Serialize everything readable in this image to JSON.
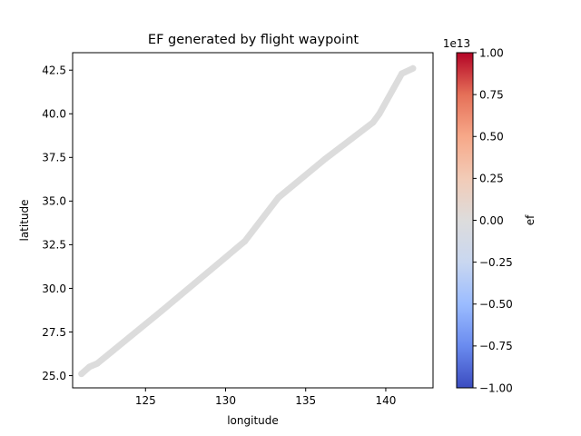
{
  "chart_data": {
    "type": "line",
    "title": "EF generated by flight waypoint",
    "xlabel": "longitude",
    "ylabel": "latitude",
    "xlim": [
      120.45,
      142.95
    ],
    "ylim": [
      24.3,
      43.5
    ],
    "xticks": [
      125,
      130,
      135,
      140
    ],
    "xtick_labels": [
      "125",
      "130",
      "135",
      "140"
    ],
    "yticks": [
      25.0,
      27.5,
      30.0,
      32.5,
      35.0,
      37.5,
      40.0,
      42.5
    ],
    "ytick_labels": [
      "25.0",
      "27.5",
      "30.0",
      "32.5",
      "35.0",
      "37.5",
      "40.0",
      "42.5"
    ],
    "grid": false,
    "series": [
      {
        "line_color": "#dcdcdc",
        "x": [
          121.0,
          121.5,
          122.0,
          126.0,
          131.2,
          133.3,
          136.2,
          139.2,
          139.6,
          141.0,
          141.7
        ],
        "y": [
          25.1,
          25.5,
          25.7,
          28.7,
          32.7,
          35.2,
          37.4,
          39.5,
          40.0,
          42.3,
          42.6
        ]
      }
    ],
    "colorbar": {
      "label": "ef",
      "scale_label": "1e13",
      "colormap": "coolwarm",
      "range": [
        -1.0,
        1.0
      ],
      "ticks": [
        1.0,
        0.75,
        0.5,
        0.25,
        0.0,
        -0.25,
        -0.5,
        -0.75,
        -1.0
      ],
      "tick_labels": [
        "1.00",
        "0.75",
        "0.50",
        "0.25",
        "0.00",
        "−0.25",
        "−0.50",
        "−0.75",
        "−1.00"
      ],
      "gradient_stops": [
        "#3b4cc0",
        "#6a8bef",
        "#9bbcff",
        "#c9d7f0",
        "#dddcdc",
        "#f2cbb7",
        "#f7a889",
        "#e57058",
        "#b40426"
      ]
    }
  }
}
